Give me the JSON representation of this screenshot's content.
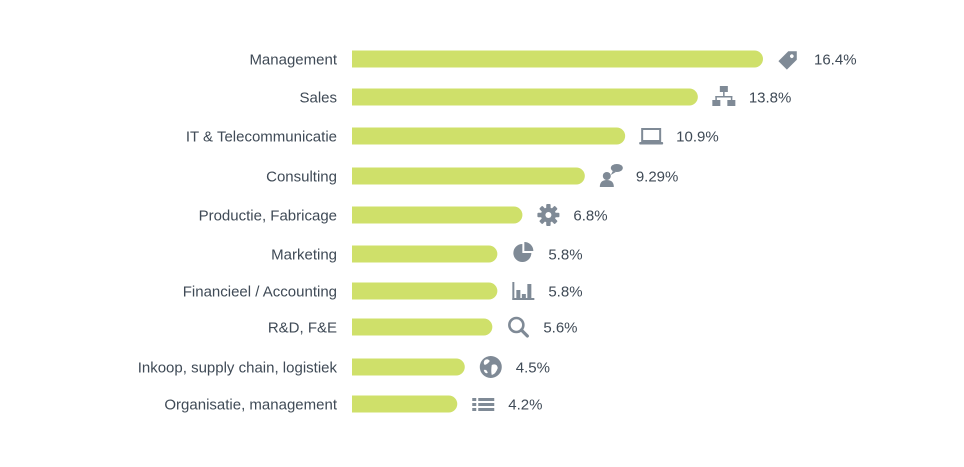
{
  "chart_data": {
    "type": "bar",
    "orientation": "horizontal",
    "categories": [
      "Management",
      "Sales",
      "IT & Telecommunicatie",
      "Consulting",
      "Productie, Fabricage",
      "Marketing",
      "Financieel / Accounting",
      "R&D, F&E",
      "Inkoop, supply chain, logistiek",
      "Organisatie, management"
    ],
    "values": [
      16.4,
      13.8,
      10.9,
      9.29,
      6.8,
      5.8,
      5.8,
      5.6,
      4.5,
      4.2
    ],
    "value_labels": [
      "16.4%",
      "13.8%",
      "10.9%",
      "9.29%",
      "6.8%",
      "5.8%",
      "5.8%",
      "5.6%",
      "4.5%",
      "4.2%"
    ],
    "icons": [
      "tag-icon",
      "sitemap-icon",
      "laptop-icon",
      "user-chat-icon",
      "gear-icon",
      "pie-chart-icon",
      "bar-chart-icon",
      "magnifier-icon",
      "globe-icon",
      "list-icon"
    ],
    "bar_color": "#cfe06a",
    "icon_color": "#7f8a96",
    "text_color": "#3f4a56",
    "xlim": [
      0,
      16.4
    ],
    "grid": false,
    "legend": "none"
  }
}
